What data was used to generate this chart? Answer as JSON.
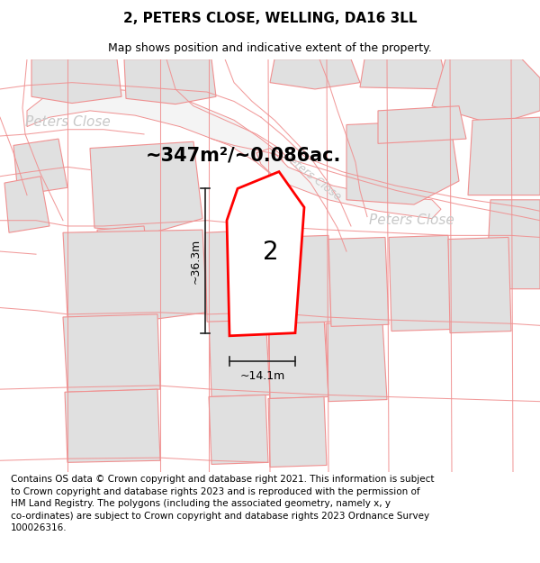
{
  "title": "2, PETERS CLOSE, WELLING, DA16 3LL",
  "subtitle": "Map shows position and indicative extent of the property.",
  "footer": "Contains OS data © Crown copyright and database right 2021. This information is subject\nto Crown copyright and database rights 2023 and is reproduced with the permission of\nHM Land Registry. The polygons (including the associated geometry, namely x, y\nco-ordinates) are subject to Crown copyright and database rights 2023 Ordnance Survey\n100026316.",
  "area_label": "~347m²/~0.086ac.",
  "width_label": "~14.1m",
  "height_label": "~36.3m",
  "plot_number": "2",
  "bg_color": "#ffffff",
  "map_bg": "#f8f8f8",
  "building_fill": "#e0e0e0",
  "building_edge": "#d0d0d0",
  "plot_fill": "#ffffff",
  "plot_edge": "#ff0000",
  "dim_color": "#222222",
  "road_text_color": "#c8c8c8",
  "boundary_color": "#f09090",
  "road_fill": "#f0f0f0",
  "road_edge": "#e0a0a0",
  "title_fontsize": 11,
  "subtitle_fontsize": 9,
  "footer_fontsize": 7.5,
  "area_fontsize": 15,
  "plot_num_fontsize": 20,
  "road_label_fontsize": 11,
  "dim_label_fontsize": 9
}
